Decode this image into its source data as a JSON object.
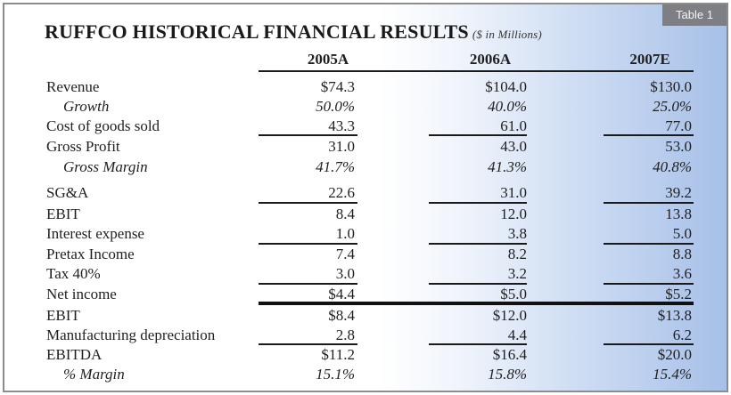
{
  "tag": "Table 1",
  "title": "RUFFCO HISTORICAL FINANCIAL RESULTS",
  "title_unit": "($ in Millions)",
  "columns": [
    "2005A",
    "2006A",
    "2007E"
  ],
  "rows": [
    {
      "label": "Revenue",
      "values": [
        "$74.3",
        "$104.0",
        "$130.0"
      ]
    },
    {
      "label": "Growth",
      "values": [
        "50.0%",
        "40.0%",
        "25.0%"
      ]
    },
    {
      "label": "Cost of goods sold",
      "values": [
        "43.3",
        "61.0",
        "77.0"
      ]
    },
    {
      "label": "Gross Profit",
      "values": [
        "31.0",
        "43.0",
        "53.0"
      ]
    },
    {
      "label": "Gross Margin",
      "values": [
        "41.7%",
        "41.3%",
        "40.8%"
      ]
    },
    {
      "label": "SG&A",
      "values": [
        "22.6",
        "31.0",
        "39.2"
      ]
    },
    {
      "label": "EBIT",
      "values": [
        "8.4",
        "12.0",
        "13.8"
      ]
    },
    {
      "label": "Interest expense",
      "values": [
        "1.0",
        "3.8",
        "5.0"
      ]
    },
    {
      "label": "Pretax Income",
      "values": [
        "7.4",
        "8.2",
        "8.8"
      ]
    },
    {
      "label": "Tax 40%",
      "values": [
        "3.0",
        "3.2",
        "3.6"
      ]
    },
    {
      "label": "Net income",
      "values": [
        "$4.4",
        "$5.0",
        "$5.2"
      ]
    },
    {
      "label": "EBIT",
      "values": [
        "$8.4",
        "$12.0",
        "$13.8"
      ]
    },
    {
      "label": "Manufacturing depreciation",
      "values": [
        "2.8",
        "4.4",
        "6.2"
      ]
    },
    {
      "label": "EBITDA",
      "values": [
        "$11.2",
        "$16.4",
        "$20.0"
      ]
    },
    {
      "label": "% Margin",
      "values": [
        "15.1%",
        "15.8%",
        "15.4%"
      ]
    }
  ]
}
